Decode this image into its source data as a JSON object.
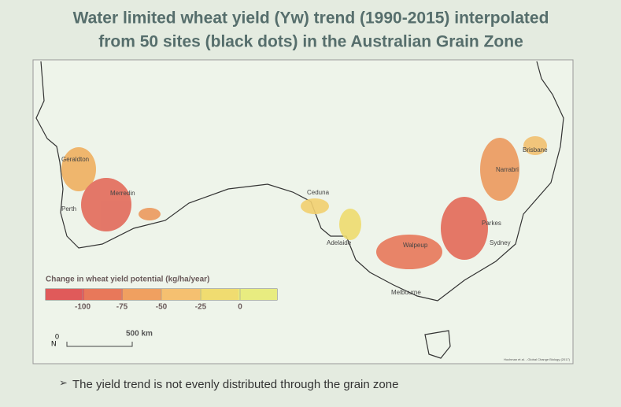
{
  "title": {
    "lines": [
      "Water limited wheat yield (Yw) trend (1990-2015) interpolated",
      "from 50 sites (black dots) in the Australian Grain Zone"
    ]
  },
  "map": {
    "places": [
      {
        "label": "Geraldton"
      },
      {
        "label": "Merredin"
      },
      {
        "label": "Perth"
      },
      {
        "label": "Ceduna"
      },
      {
        "label": "Adelaide"
      },
      {
        "label": "Walpeup"
      },
      {
        "label": "Melbourne"
      },
      {
        "label": "Parkes"
      },
      {
        "label": "Sydney"
      },
      {
        "label": "Narrabri"
      },
      {
        "label": "Brisbane"
      }
    ],
    "legend": {
      "title": "Change in wheat yield potential (kg/ha/year)",
      "ticks": [
        -100,
        -75,
        -50,
        -25,
        0
      ]
    },
    "scale_bar": {
      "start": 0,
      "label": "500 km"
    },
    "north": "N",
    "credit": "Hochman et al. - Global Change Biology (2017)"
  },
  "bullet": "The yield trend is not evenly distributed through the grain zone"
}
